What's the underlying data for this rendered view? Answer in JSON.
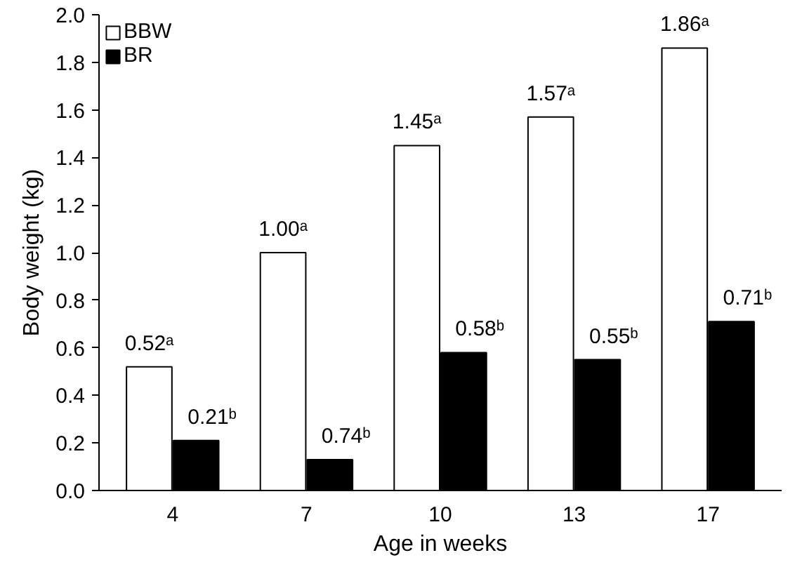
{
  "chart_data": {
    "type": "bar",
    "xlabel": "Age in weeks",
    "ylabel": "Body weight (kg)",
    "categories": [
      "4",
      "7",
      "10",
      "13",
      "17"
    ],
    "series": [
      {
        "name": "BBW",
        "color": "#ffffff",
        "values": [
          0.52,
          1.0,
          1.45,
          1.57,
          1.86
        ],
        "value_labels": [
          "0.52ᵃ",
          "1.00ᵃ",
          "1.45ᵃ",
          "1.57ᵃ",
          "1.86ᵃ"
        ]
      },
      {
        "name": "BR",
        "color": "#000000",
        "values": [
          0.21,
          0.13,
          0.58,
          0.55,
          0.71
        ],
        "value_labels": [
          "0.21ᵇ",
          null,
          "0.58ᵇ",
          "0.55ᵇ",
          "0.71ᵇ"
        ]
      }
    ],
    "annotations": [
      {
        "text": "0.74ᵇ",
        "x": "7",
        "y": 0.13
      }
    ],
    "ylim": [
      0,
      2.0
    ],
    "yticks": [
      {
        "value": 0,
        "label": "0.0"
      },
      {
        "value": 0.2,
        "label": "0.2"
      },
      {
        "value": 0.4,
        "label": "0.4"
      },
      {
        "value": 0.6,
        "label": "0.6"
      },
      {
        "value": 0.8,
        "label": "0.8"
      },
      {
        "value": 1.0,
        "label": "1.0"
      },
      {
        "value": 1.2,
        "label": "1.2"
      },
      {
        "value": 1.4,
        "label": "1.4"
      },
      {
        "value": 1.6,
        "label": "1.6"
      },
      {
        "value": 1.8,
        "label": "1.8"
      },
      {
        "value": 2.0,
        "label": "2.0"
      }
    ],
    "grid": false,
    "legend": "top left"
  }
}
